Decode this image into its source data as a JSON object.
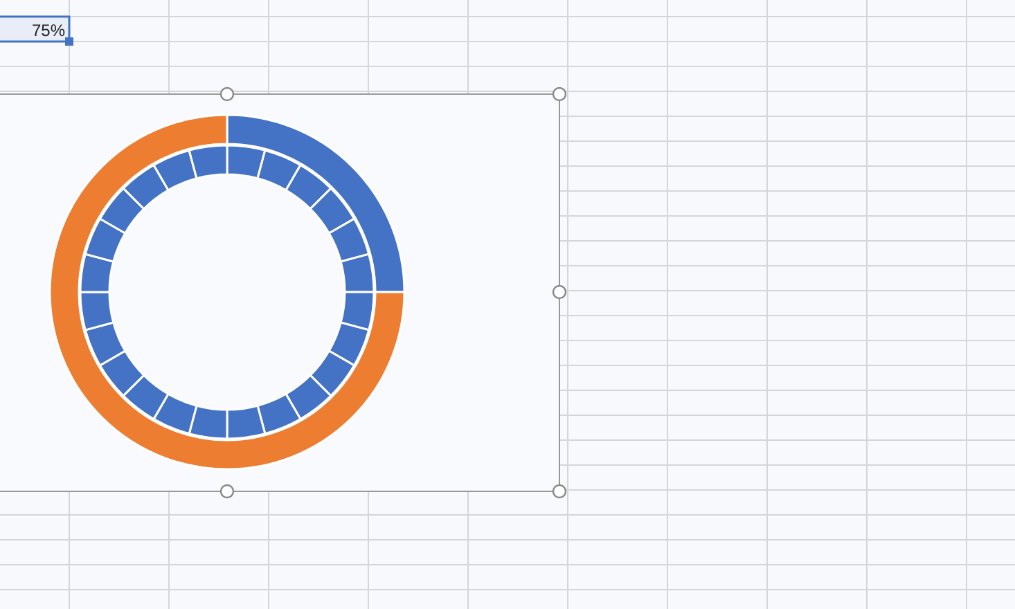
{
  "chart_data": {
    "type": "donut",
    "annotations": [
      "75%"
    ],
    "series": [
      {
        "values": [
          25,
          75
        ],
        "colors": [
          "#4472c4",
          "#ed7d31"
        ]
      },
      {
        "values": [
          4.1667,
          4.1667,
          4.1667,
          4.1667,
          4.1667,
          4.1667,
          4.1667,
          4.1667,
          4.1667,
          4.1667,
          4.1667,
          4.1667,
          4.1667,
          4.1667,
          4.1667,
          4.1667,
          4.1667,
          4.1667,
          4.1667,
          4.1667,
          4.1667,
          4.1667,
          4.1667,
          4.1667
        ],
        "colors": [
          "#4472c4",
          "#4472c4",
          "#4472c4",
          "#4472c4",
          "#4472c4",
          "#4472c4",
          "#4472c4",
          "#4472c4",
          "#4472c4",
          "#4472c4",
          "#4472c4",
          "#4472c4",
          "#4472c4",
          "#4472c4",
          "#4472c4",
          "#4472c4",
          "#4472c4",
          "#4472c4",
          "#4472c4",
          "#4472c4",
          "#4472c4",
          "#4472c4",
          "#4472c4",
          "#4472c4"
        ]
      }
    ]
  }
}
